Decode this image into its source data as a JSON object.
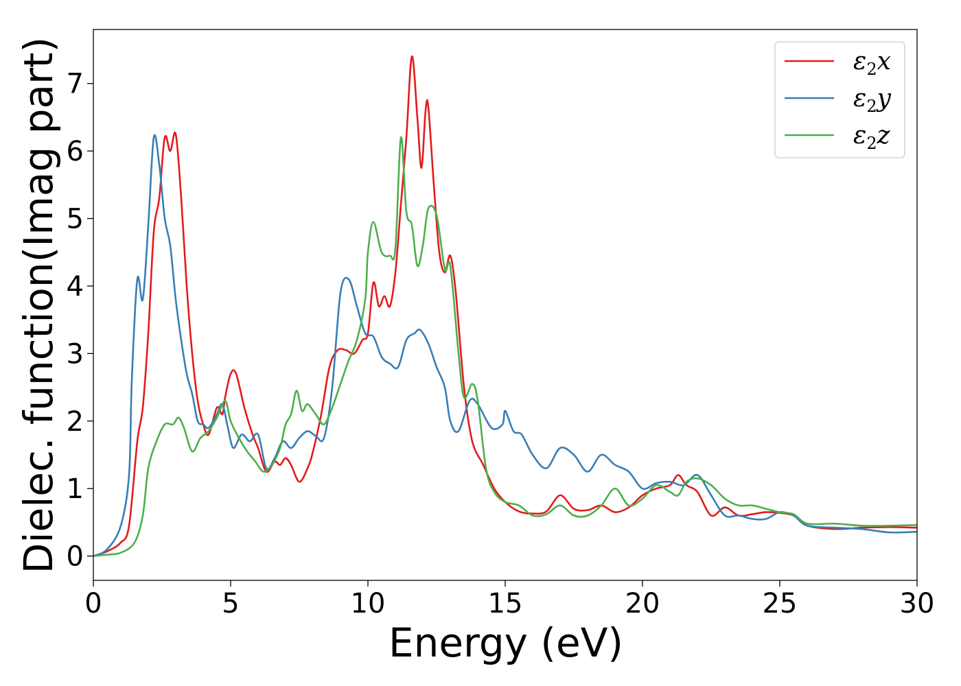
{
  "chart_data": {
    "type": "line",
    "title": "",
    "xlabel": "Energy (eV)",
    "ylabel": "Dielec. function(Imag part)",
    "xlim": [
      0,
      30
    ],
    "ylim": [
      -0.36,
      7.8
    ],
    "xticks": [
      0,
      5,
      10,
      15,
      20,
      25,
      30
    ],
    "xtick_labels": [
      "0",
      "5",
      "10",
      "15",
      "20",
      "25",
      "30"
    ],
    "yticks": [
      0,
      1,
      2,
      3,
      4,
      5,
      6,
      7
    ],
    "ytick_labels": [
      "0",
      "1",
      "2",
      "3",
      "4",
      "5",
      "6",
      "7"
    ],
    "grid": false,
    "legend": "top-right",
    "series": [
      {
        "name": "ε2x",
        "legend_main": "ε",
        "legend_sub": "2",
        "legend_tail": "x",
        "color": "#e41a1c",
        "points": [
          [
            0,
            0
          ],
          [
            0.5,
            0.07
          ],
          [
            1.0,
            0.2
          ],
          [
            1.3,
            0.45
          ],
          [
            1.6,
            1.7
          ],
          [
            1.8,
            2.2
          ],
          [
            2.0,
            3.3
          ],
          [
            2.2,
            4.8
          ],
          [
            2.4,
            5.3
          ],
          [
            2.6,
            6.2
          ],
          [
            2.8,
            6.0
          ],
          [
            3.0,
            6.25
          ],
          [
            3.2,
            5.3
          ],
          [
            3.4,
            4.0
          ],
          [
            3.6,
            3.0
          ],
          [
            3.8,
            2.3
          ],
          [
            4.0,
            1.95
          ],
          [
            4.2,
            1.8
          ],
          [
            4.5,
            2.2
          ],
          [
            4.7,
            2.1
          ],
          [
            4.8,
            2.35
          ],
          [
            5.0,
            2.7
          ],
          [
            5.2,
            2.7
          ],
          [
            5.5,
            2.2
          ],
          [
            5.8,
            1.8
          ],
          [
            6.0,
            1.6
          ],
          [
            6.3,
            1.25
          ],
          [
            6.6,
            1.4
          ],
          [
            6.8,
            1.35
          ],
          [
            7.0,
            1.45
          ],
          [
            7.2,
            1.35
          ],
          [
            7.5,
            1.1
          ],
          [
            7.8,
            1.3
          ],
          [
            8.0,
            1.55
          ],
          [
            8.3,
            2.1
          ],
          [
            8.6,
            2.8
          ],
          [
            8.9,
            3.05
          ],
          [
            9.2,
            3.05
          ],
          [
            9.5,
            3.0
          ],
          [
            9.8,
            3.2
          ],
          [
            10.0,
            3.3
          ],
          [
            10.2,
            4.05
          ],
          [
            10.4,
            3.7
          ],
          [
            10.6,
            3.85
          ],
          [
            10.8,
            3.7
          ],
          [
            11.0,
            4.2
          ],
          [
            11.2,
            5.2
          ],
          [
            11.4,
            6.2
          ],
          [
            11.6,
            7.4
          ],
          [
            11.8,
            6.5
          ],
          [
            11.95,
            5.75
          ],
          [
            12.1,
            6.6
          ],
          [
            12.2,
            6.65
          ],
          [
            12.4,
            5.5
          ],
          [
            12.6,
            4.5
          ],
          [
            12.8,
            4.2
          ],
          [
            13.0,
            4.45
          ],
          [
            13.2,
            3.9
          ],
          [
            13.5,
            2.5
          ],
          [
            13.8,
            1.7
          ],
          [
            14.2,
            1.35
          ],
          [
            14.6,
            1.0
          ],
          [
            15.0,
            0.8
          ],
          [
            15.5,
            0.66
          ],
          [
            16.0,
            0.63
          ],
          [
            16.5,
            0.66
          ],
          [
            17.0,
            0.9
          ],
          [
            17.5,
            0.7
          ],
          [
            18.0,
            0.68
          ],
          [
            18.5,
            0.75
          ],
          [
            19.0,
            0.65
          ],
          [
            19.5,
            0.72
          ],
          [
            20.0,
            0.9
          ],
          [
            20.5,
            1.0
          ],
          [
            21.0,
            1.05
          ],
          [
            21.3,
            1.2
          ],
          [
            21.6,
            1.05
          ],
          [
            22.0,
            0.95
          ],
          [
            22.5,
            0.6
          ],
          [
            23.0,
            0.72
          ],
          [
            23.5,
            0.6
          ],
          [
            24.0,
            0.62
          ],
          [
            24.5,
            0.65
          ],
          [
            25.0,
            0.64
          ],
          [
            25.5,
            0.6
          ],
          [
            26.0,
            0.45
          ],
          [
            27.0,
            0.4
          ],
          [
            28.0,
            0.42
          ],
          [
            29.0,
            0.43
          ],
          [
            30.0,
            0.42
          ]
        ]
      },
      {
        "name": "ε2y",
        "legend_main": "ε",
        "legend_sub": "2",
        "legend_tail": "y",
        "color": "#377eb8",
        "points": [
          [
            0,
            0
          ],
          [
            0.5,
            0.1
          ],
          [
            1.0,
            0.45
          ],
          [
            1.3,
            1.2
          ],
          [
            1.4,
            2.6
          ],
          [
            1.6,
            4.1
          ],
          [
            1.8,
            3.8
          ],
          [
            2.0,
            4.9
          ],
          [
            2.2,
            6.2
          ],
          [
            2.4,
            5.8
          ],
          [
            2.6,
            5.0
          ],
          [
            2.8,
            4.6
          ],
          [
            3.0,
            3.8
          ],
          [
            3.2,
            3.2
          ],
          [
            3.4,
            2.7
          ],
          [
            3.6,
            2.4
          ],
          [
            3.8,
            2.0
          ],
          [
            4.0,
            1.95
          ],
          [
            4.2,
            1.9
          ],
          [
            4.5,
            2.1
          ],
          [
            4.7,
            2.25
          ],
          [
            4.9,
            1.9
          ],
          [
            5.1,
            1.6
          ],
          [
            5.4,
            1.8
          ],
          [
            5.7,
            1.7
          ],
          [
            6.0,
            1.8
          ],
          [
            6.3,
            1.3
          ],
          [
            6.6,
            1.45
          ],
          [
            6.9,
            1.7
          ],
          [
            7.2,
            1.6
          ],
          [
            7.5,
            1.75
          ],
          [
            7.8,
            1.85
          ],
          [
            8.1,
            1.78
          ],
          [
            8.4,
            1.75
          ],
          [
            8.7,
            2.5
          ],
          [
            9.0,
            3.9
          ],
          [
            9.3,
            4.1
          ],
          [
            9.6,
            3.7
          ],
          [
            9.9,
            3.3
          ],
          [
            10.2,
            3.25
          ],
          [
            10.5,
            2.95
          ],
          [
            10.8,
            2.85
          ],
          [
            11.1,
            2.8
          ],
          [
            11.4,
            3.2
          ],
          [
            11.7,
            3.3
          ],
          [
            11.9,
            3.35
          ],
          [
            12.2,
            3.15
          ],
          [
            12.5,
            2.8
          ],
          [
            12.8,
            2.5
          ],
          [
            13.0,
            2.0
          ],
          [
            13.3,
            1.85
          ],
          [
            13.7,
            2.3
          ],
          [
            14.0,
            2.25
          ],
          [
            14.5,
            1.9
          ],
          [
            14.9,
            1.95
          ],
          [
            15.0,
            2.15
          ],
          [
            15.3,
            1.85
          ],
          [
            15.6,
            1.8
          ],
          [
            16.0,
            1.5
          ],
          [
            16.5,
            1.3
          ],
          [
            17.0,
            1.6
          ],
          [
            17.5,
            1.5
          ],
          [
            18.0,
            1.25
          ],
          [
            18.5,
            1.5
          ],
          [
            19.0,
            1.35
          ],
          [
            19.5,
            1.25
          ],
          [
            20.0,
            1.0
          ],
          [
            20.5,
            1.08
          ],
          [
            21.0,
            1.1
          ],
          [
            21.5,
            1.05
          ],
          [
            22.0,
            1.2
          ],
          [
            22.5,
            0.9
          ],
          [
            23.0,
            0.6
          ],
          [
            23.5,
            0.6
          ],
          [
            24.0,
            0.55
          ],
          [
            24.5,
            0.55
          ],
          [
            25.0,
            0.65
          ],
          [
            25.5,
            0.6
          ],
          [
            26.0,
            0.45
          ],
          [
            27.0,
            0.42
          ],
          [
            28.0,
            0.4
          ],
          [
            29.0,
            0.35
          ],
          [
            30.0,
            0.36
          ]
        ]
      },
      {
        "name": "ε2z",
        "legend_main": "ε",
        "legend_sub": "2",
        "legend_tail": "z",
        "color": "#4daf4a",
        "points": [
          [
            0,
            0
          ],
          [
            0.5,
            0.02
          ],
          [
            1.0,
            0.05
          ],
          [
            1.5,
            0.2
          ],
          [
            1.8,
            0.6
          ],
          [
            2.0,
            1.3
          ],
          [
            2.3,
            1.7
          ],
          [
            2.6,
            1.95
          ],
          [
            2.9,
            1.95
          ],
          [
            3.1,
            2.05
          ],
          [
            3.3,
            1.9
          ],
          [
            3.6,
            1.55
          ],
          [
            3.9,
            1.75
          ],
          [
            4.2,
            1.85
          ],
          [
            4.5,
            2.05
          ],
          [
            4.8,
            2.3
          ],
          [
            5.0,
            2.0
          ],
          [
            5.3,
            1.75
          ],
          [
            5.6,
            1.55
          ],
          [
            5.9,
            1.4
          ],
          [
            6.2,
            1.25
          ],
          [
            6.5,
            1.35
          ],
          [
            6.8,
            1.6
          ],
          [
            7.0,
            1.95
          ],
          [
            7.2,
            2.1
          ],
          [
            7.4,
            2.45
          ],
          [
            7.6,
            2.15
          ],
          [
            7.8,
            2.25
          ],
          [
            8.1,
            2.1
          ],
          [
            8.4,
            1.95
          ],
          [
            8.7,
            2.2
          ],
          [
            9.0,
            2.55
          ],
          [
            9.3,
            2.9
          ],
          [
            9.6,
            3.2
          ],
          [
            9.9,
            3.8
          ],
          [
            10.0,
            4.5
          ],
          [
            10.2,
            4.95
          ],
          [
            10.5,
            4.5
          ],
          [
            10.8,
            4.45
          ],
          [
            11.0,
            4.55
          ],
          [
            11.2,
            6.2
          ],
          [
            11.4,
            5.1
          ],
          [
            11.6,
            4.9
          ],
          [
            11.8,
            4.3
          ],
          [
            12.0,
            4.6
          ],
          [
            12.2,
            5.15
          ],
          [
            12.5,
            5.05
          ],
          [
            12.8,
            4.25
          ],
          [
            13.0,
            4.3
          ],
          [
            13.3,
            3.0
          ],
          [
            13.5,
            2.35
          ],
          [
            13.8,
            2.55
          ],
          [
            14.0,
            2.3
          ],
          [
            14.3,
            1.3
          ],
          [
            14.6,
            0.95
          ],
          [
            15.0,
            0.8
          ],
          [
            15.5,
            0.75
          ],
          [
            16.0,
            0.6
          ],
          [
            16.5,
            0.62
          ],
          [
            17.0,
            0.75
          ],
          [
            17.5,
            0.6
          ],
          [
            18.0,
            0.6
          ],
          [
            18.5,
            0.75
          ],
          [
            19.0,
            1.0
          ],
          [
            19.5,
            0.75
          ],
          [
            20.0,
            0.85
          ],
          [
            20.5,
            1.05
          ],
          [
            21.0,
            0.95
          ],
          [
            21.3,
            0.9
          ],
          [
            21.6,
            1.1
          ],
          [
            22.0,
            1.15
          ],
          [
            22.5,
            1.05
          ],
          [
            23.0,
            0.85
          ],
          [
            23.5,
            0.75
          ],
          [
            24.0,
            0.75
          ],
          [
            24.5,
            0.7
          ],
          [
            25.0,
            0.65
          ],
          [
            25.5,
            0.62
          ],
          [
            26.0,
            0.48
          ],
          [
            27.0,
            0.48
          ],
          [
            28.0,
            0.45
          ],
          [
            29.0,
            0.45
          ],
          [
            30.0,
            0.46
          ]
        ]
      }
    ]
  }
}
